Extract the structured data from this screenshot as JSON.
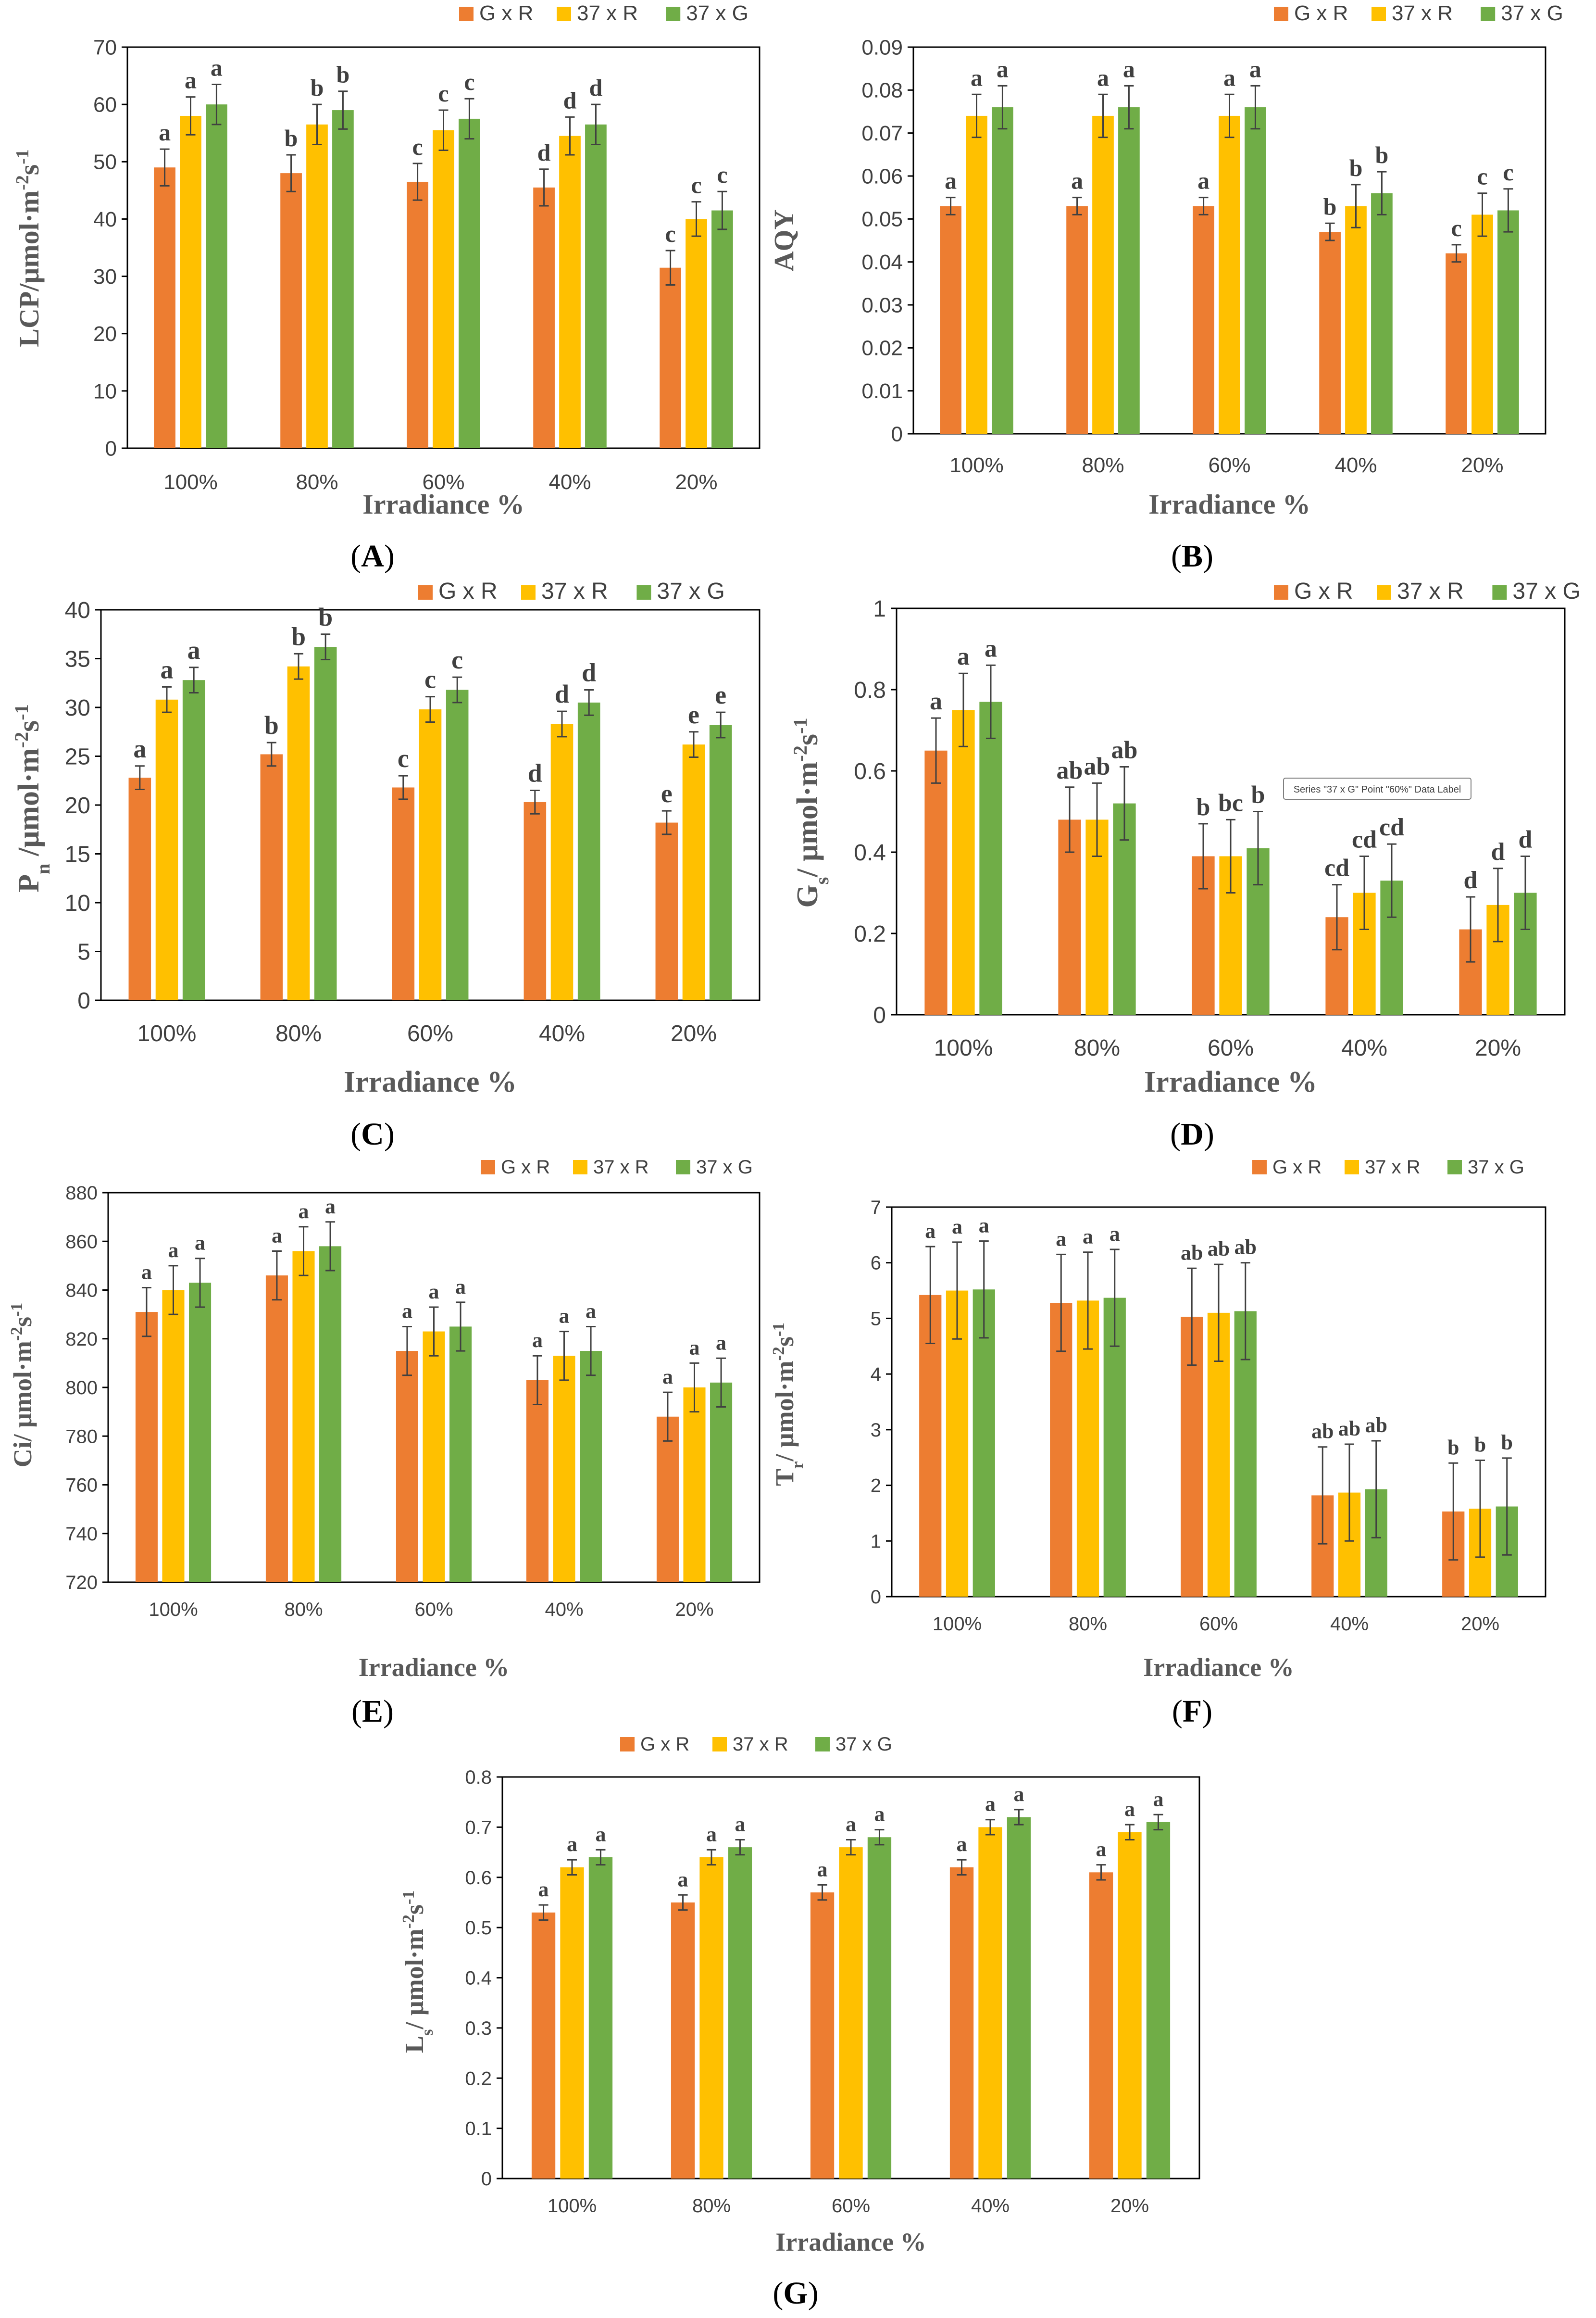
{
  "colors": {
    "G x R": "#ED7D31",
    "37 x R": "#FFC000",
    "37 x G": "#70AD47",
    "axis": "#000000",
    "errbar": "#404040",
    "text": "#595959"
  },
  "chart_data": [
    {
      "panel": "A",
      "type": "bar",
      "ylabel": "LCP/μmol·m-2s-1",
      "ylabel_parts": [
        [
          "LCP/μmol·m",
          ""
        ],
        [
          "-2",
          "sup"
        ],
        [
          "s",
          ""
        ],
        [
          "-1",
          "sup"
        ]
      ],
      "xlabel": "Irradiance %",
      "categories": [
        "100%",
        "80%",
        "60%",
        "40%",
        "20%"
      ],
      "ylim": [
        0,
        70
      ],
      "yticks": [
        0,
        10,
        20,
        30,
        40,
        50,
        60,
        70
      ],
      "grid": false,
      "legend": "top-right",
      "series": [
        {
          "name": "G x R",
          "values": [
            49,
            48,
            46.5,
            45.5,
            31.5
          ],
          "errors": [
            3.2,
            3.2,
            3.2,
            3.2,
            3.0
          ],
          "letters": [
            "a",
            "b",
            "c",
            "d",
            "c"
          ]
        },
        {
          "name": "37 x R",
          "values": [
            58,
            56.5,
            55.5,
            54.5,
            40
          ],
          "errors": [
            3.3,
            3.5,
            3.5,
            3.3,
            3.0
          ],
          "letters": [
            "a",
            "b",
            "c",
            "d",
            "c"
          ]
        },
        {
          "name": "37 x G",
          "values": [
            60,
            59,
            57.5,
            56.5,
            41.5
          ],
          "errors": [
            3.5,
            3.3,
            3.5,
            3.5,
            3.3
          ],
          "letters": [
            "a",
            "b",
            "c",
            "d",
            "c"
          ]
        }
      ]
    },
    {
      "panel": "B",
      "type": "bar",
      "ylabel": "AQY",
      "ylabel_parts": [
        [
          "AQY",
          ""
        ]
      ],
      "xlabel": "Irradiance %",
      "categories": [
        "100%",
        "80%",
        "60%",
        "40%",
        "20%"
      ],
      "ylim": [
        0,
        0.09
      ],
      "yticks": [
        0,
        0.01,
        0.02,
        0.03,
        0.04,
        0.05,
        0.06,
        0.07,
        0.08,
        0.09
      ],
      "grid": false,
      "legend": "top-right",
      "series": [
        {
          "name": "G x R",
          "values": [
            0.053,
            0.053,
            0.053,
            0.047,
            0.042
          ],
          "errors": [
            0.002,
            0.002,
            0.002,
            0.002,
            0.002
          ],
          "letters": [
            "a",
            "a",
            "a",
            "b",
            "c"
          ]
        },
        {
          "name": "37 x R",
          "values": [
            0.074,
            0.074,
            0.074,
            0.053,
            0.051
          ],
          "errors": [
            0.005,
            0.005,
            0.005,
            0.005,
            0.005
          ],
          "letters": [
            "a",
            "a",
            "a",
            "b",
            "c"
          ]
        },
        {
          "name": "37 x G",
          "values": [
            0.076,
            0.076,
            0.076,
            0.056,
            0.052
          ],
          "errors": [
            0.005,
            0.005,
            0.005,
            0.005,
            0.005
          ],
          "letters": [
            "a",
            "a",
            "a",
            "b",
            "c"
          ]
        }
      ]
    },
    {
      "panel": "C",
      "type": "bar",
      "ylabel": "Pn /μmol·m-2s-1",
      "ylabel_parts": [
        [
          "P",
          ""
        ],
        [
          "n",
          "sub"
        ],
        [
          " /μmol·m",
          ""
        ],
        [
          "-2",
          "sup"
        ],
        [
          "s",
          ""
        ],
        [
          "-1",
          "sup"
        ]
      ],
      "xlabel": "Irradiance %",
      "categories": [
        "100%",
        "80%",
        "60%",
        "40%",
        "20%"
      ],
      "ylim": [
        0,
        40
      ],
      "yticks": [
        0,
        5,
        10,
        15,
        20,
        25,
        30,
        35,
        40
      ],
      "grid": false,
      "legend": "top-right",
      "series": [
        {
          "name": "G x R",
          "values": [
            22.8,
            25.2,
            21.8,
            20.3,
            18.2
          ],
          "errors": [
            1.2,
            1.2,
            1.2,
            1.2,
            1.2
          ],
          "letters": [
            "a",
            "b",
            "c",
            "d",
            "e"
          ]
        },
        {
          "name": "37 x R",
          "values": [
            30.8,
            34.2,
            29.8,
            28.3,
            26.2
          ],
          "errors": [
            1.3,
            1.3,
            1.3,
            1.3,
            1.3
          ],
          "letters": [
            "a",
            "b",
            "c",
            "d",
            "e"
          ]
        },
        {
          "name": "37 x G",
          "values": [
            32.8,
            36.2,
            31.8,
            30.5,
            28.2
          ],
          "errors": [
            1.3,
            1.3,
            1.3,
            1.3,
            1.3
          ],
          "letters": [
            "a",
            "b",
            "c",
            "d",
            "e"
          ]
        }
      ]
    },
    {
      "panel": "D",
      "type": "bar",
      "ylabel": "Gs/ μmol·m-2s-1",
      "ylabel_parts": [
        [
          "G",
          ""
        ],
        [
          "s",
          "sub"
        ],
        [
          "/ μmol·m",
          ""
        ],
        [
          "-2",
          "sup"
        ],
        [
          "s",
          ""
        ],
        [
          "-1",
          "sup"
        ]
      ],
      "xlabel": "Irradiance %",
      "categories": [
        "100%",
        "80%",
        "60%",
        "40%",
        "20%"
      ],
      "ylim": [
        0,
        1
      ],
      "yticks": [
        0,
        0.2,
        0.4,
        0.6,
        0.8,
        1
      ],
      "grid": false,
      "legend": "top-right",
      "tooltip": "Series \"37 x G\" Point \"60%\" Data Label",
      "series": [
        {
          "name": "G x R",
          "values": [
            0.65,
            0.48,
            0.39,
            0.24,
            0.21
          ],
          "errors": [
            0.08,
            0.08,
            0.08,
            0.08,
            0.08
          ],
          "letters": [
            "a",
            "ab",
            "b",
            "cd",
            "d"
          ]
        },
        {
          "name": "37 x R",
          "values": [
            0.75,
            0.48,
            0.39,
            0.3,
            0.27
          ],
          "errors": [
            0.09,
            0.09,
            0.09,
            0.09,
            0.09
          ],
          "letters": [
            "a",
            "ab",
            "bc",
            "cd",
            "d"
          ]
        },
        {
          "name": "37 x G",
          "values": [
            0.77,
            0.52,
            0.41,
            0.33,
            0.3
          ],
          "errors": [
            0.09,
            0.09,
            0.09,
            0.09,
            0.09
          ],
          "letters": [
            "a",
            "ab",
            "b",
            "cd",
            "d"
          ]
        }
      ]
    },
    {
      "panel": "E",
      "type": "bar",
      "ylabel": "Ci/ μmol·m-2s-1",
      "ylabel_parts": [
        [
          "Ci/ μmol·m",
          ""
        ],
        [
          "-2",
          "sup"
        ],
        [
          "s",
          ""
        ],
        [
          "-1",
          "sup"
        ]
      ],
      "xlabel": "Irradiance %",
      "categories": [
        "100%",
        "80%",
        "60%",
        "40%",
        "20%"
      ],
      "ylim": [
        720,
        880
      ],
      "yticks": [
        720,
        740,
        760,
        780,
        800,
        820,
        840,
        860,
        880
      ],
      "grid": false,
      "legend": "top-right",
      "series": [
        {
          "name": "G x R",
          "values": [
            831,
            846,
            815,
            803,
            788
          ],
          "errors": [
            10,
            10,
            10,
            10,
            10
          ],
          "letters": [
            "a",
            "a",
            "a",
            "a",
            "a"
          ]
        },
        {
          "name": "37 x R",
          "values": [
            840,
            856,
            823,
            813,
            800
          ],
          "errors": [
            10,
            10,
            10,
            10,
            10
          ],
          "letters": [
            "a",
            "a",
            "a",
            "a",
            "a"
          ]
        },
        {
          "name": "37 x G",
          "values": [
            843,
            858,
            825,
            815,
            802
          ],
          "errors": [
            10,
            10,
            10,
            10,
            10
          ],
          "letters": [
            "a",
            "a",
            "a",
            "a",
            "a"
          ]
        }
      ]
    },
    {
      "panel": "F",
      "type": "bar",
      "ylabel": "Tr/ μmol·m-2s-1",
      "ylabel_parts": [
        [
          "T",
          ""
        ],
        [
          "r",
          "sub"
        ],
        [
          "/ μmol·m",
          ""
        ],
        [
          "-2",
          "sup"
        ],
        [
          "s",
          ""
        ],
        [
          "-1",
          "sup"
        ]
      ],
      "xlabel": "Irradiance %",
      "categories": [
        "100%",
        "80%",
        "60%",
        "40%",
        "20%"
      ],
      "ylim": [
        0,
        7
      ],
      "yticks": [
        0,
        1,
        2,
        3,
        4,
        5,
        6,
        7
      ],
      "grid": false,
      "legend": "top-right",
      "series": [
        {
          "name": "G x R",
          "values": [
            5.42,
            5.28,
            5.03,
            1.82,
            1.53
          ],
          "errors": [
            0.87,
            0.87,
            0.87,
            0.87,
            0.87
          ],
          "letters": [
            "a",
            "a",
            "ab",
            "ab",
            "b"
          ]
        },
        {
          "name": "37 x R",
          "values": [
            5.5,
            5.32,
            5.1,
            1.87,
            1.58
          ],
          "errors": [
            0.87,
            0.87,
            0.87,
            0.87,
            0.87
          ],
          "letters": [
            "a",
            "a",
            "ab",
            "ab",
            "b"
          ]
        },
        {
          "name": "37 x G",
          "values": [
            5.52,
            5.37,
            5.13,
            1.93,
            1.62
          ],
          "errors": [
            0.87,
            0.87,
            0.87,
            0.87,
            0.87
          ],
          "letters": [
            "a",
            "a",
            "ab",
            "ab",
            "b"
          ]
        }
      ]
    },
    {
      "panel": "G",
      "type": "bar",
      "ylabel": "Ls/ μmol·m-2s-1",
      "ylabel_parts": [
        [
          "L",
          ""
        ],
        [
          "s",
          "sub"
        ],
        [
          "/ μmol·m",
          ""
        ],
        [
          "-2",
          "sup"
        ],
        [
          "s",
          ""
        ],
        [
          "-1",
          "sup"
        ]
      ],
      "xlabel": "Irradiance %",
      "categories": [
        "100%",
        "80%",
        "60%",
        "40%",
        "20%"
      ],
      "ylim": [
        0,
        0.8
      ],
      "yticks": [
        0,
        0.1,
        0.2,
        0.3,
        0.4,
        0.5,
        0.6,
        0.7,
        0.8
      ],
      "grid": false,
      "legend": "top-right",
      "series": [
        {
          "name": "G x R",
          "values": [
            0.53,
            0.55,
            0.57,
            0.62,
            0.61
          ],
          "errors": [
            0.015,
            0.015,
            0.015,
            0.015,
            0.015
          ],
          "letters": [
            "a",
            "a",
            "a",
            "a",
            "a"
          ]
        },
        {
          "name": "37 x R",
          "values": [
            0.62,
            0.64,
            0.66,
            0.7,
            0.69
          ],
          "errors": [
            0.015,
            0.015,
            0.015,
            0.015,
            0.015
          ],
          "letters": [
            "a",
            "a",
            "a",
            "a",
            "a"
          ]
        },
        {
          "name": "37 x G",
          "values": [
            0.64,
            0.66,
            0.68,
            0.72,
            0.71
          ],
          "errors": [
            0.015,
            0.015,
            0.015,
            0.015,
            0.015
          ],
          "letters": [
            "a",
            "a",
            "a",
            "a",
            "a"
          ]
        }
      ]
    }
  ]
}
